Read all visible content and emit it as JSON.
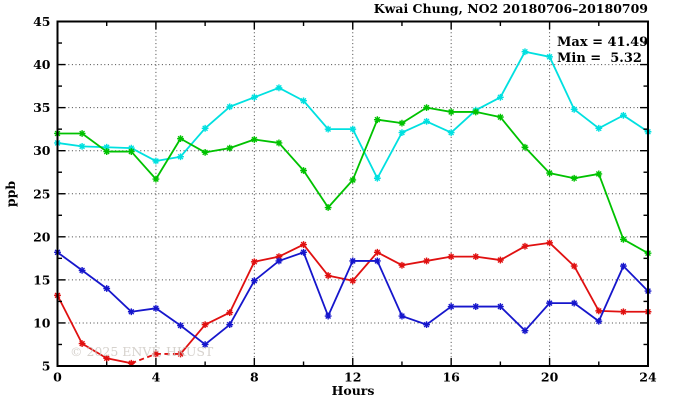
{
  "title": "Kwai Chung, NO2 20180706–20180709",
  "annotation": {
    "max_label": "Max = 41.49",
    "min_label": "Min =  5.32"
  },
  "watermark": "© 2025 ENVF, HKUST",
  "chart_data": {
    "type": "line",
    "title": "Kwai Chung, NO2 20180706–20180709",
    "xlabel": "Hours",
    "ylabel": "ppb",
    "xlim": [
      0,
      24
    ],
    "ylim": [
      5,
      45
    ],
    "x_major_ticks": [
      0,
      4,
      8,
      12,
      16,
      20,
      24
    ],
    "x_minor_ticks": [
      2,
      6,
      10,
      14,
      18,
      22
    ],
    "y_major_ticks": [
      5,
      10,
      15,
      20,
      25,
      30,
      35,
      40,
      45
    ],
    "y_minor_ticks": [
      7.5,
      12.5,
      17.5,
      22.5,
      27.5,
      32.5,
      37.5,
      42.5
    ],
    "grid": "dotted lines at interior major ticks, mirrored ticks on all four borders",
    "legend_position": "none",
    "max": 41.49,
    "min": 5.32,
    "x": [
      0,
      1,
      2,
      3,
      4,
      5,
      6,
      7,
      8,
      9,
      10,
      11,
      12,
      13,
      14,
      15,
      16,
      17,
      18,
      19,
      20,
      21,
      22,
      23,
      24
    ],
    "series": [
      {
        "name": "cyan-series",
        "color": "#00e0e0",
        "values": [
          30.9,
          30.5,
          30.4,
          30.3,
          28.8,
          29.3,
          32.6,
          35.1,
          36.2,
          37.3,
          35.8,
          32.5,
          32.5,
          26.8,
          32.1,
          33.4,
          32.1,
          34.7,
          36.2,
          41.49,
          40.9,
          34.8,
          32.6,
          34.1,
          32.2
        ]
      },
      {
        "name": "green-series",
        "color": "#00c200",
        "values": [
          32.0,
          32.0,
          29.9,
          29.9,
          26.7,
          31.4,
          29.8,
          30.3,
          31.3,
          30.9,
          27.7,
          23.4,
          26.6,
          33.6,
          33.2,
          35.0,
          34.5,
          34.5,
          33.9,
          30.4,
          27.4,
          26.8,
          27.3,
          19.7,
          18.1
        ]
      },
      {
        "name": "red-series",
        "color": "#e01010",
        "values": [
          13.2,
          7.6,
          5.9,
          5.32,
          6.4,
          6.4,
          9.8,
          11.2,
          17.1,
          17.7,
          19.1,
          15.5,
          14.9,
          18.2,
          16.7,
          17.2,
          17.7,
          17.7,
          17.3,
          18.9,
          19.3,
          16.6,
          11.4,
          11.3,
          11.3
        ],
        "dash_segments": [
          [
            3,
            5
          ]
        ]
      },
      {
        "name": "blue-series",
        "color": "#1616cc",
        "values": [
          18.2,
          16.1,
          14.0,
          11.3,
          11.7,
          9.7,
          7.5,
          9.8,
          14.9,
          17.2,
          18.2,
          10.8,
          17.2,
          17.2,
          10.8,
          9.8,
          11.9,
          11.9,
          11.9,
          9.1,
          12.3,
          12.3,
          10.2,
          16.6,
          13.7
        ]
      }
    ]
  }
}
